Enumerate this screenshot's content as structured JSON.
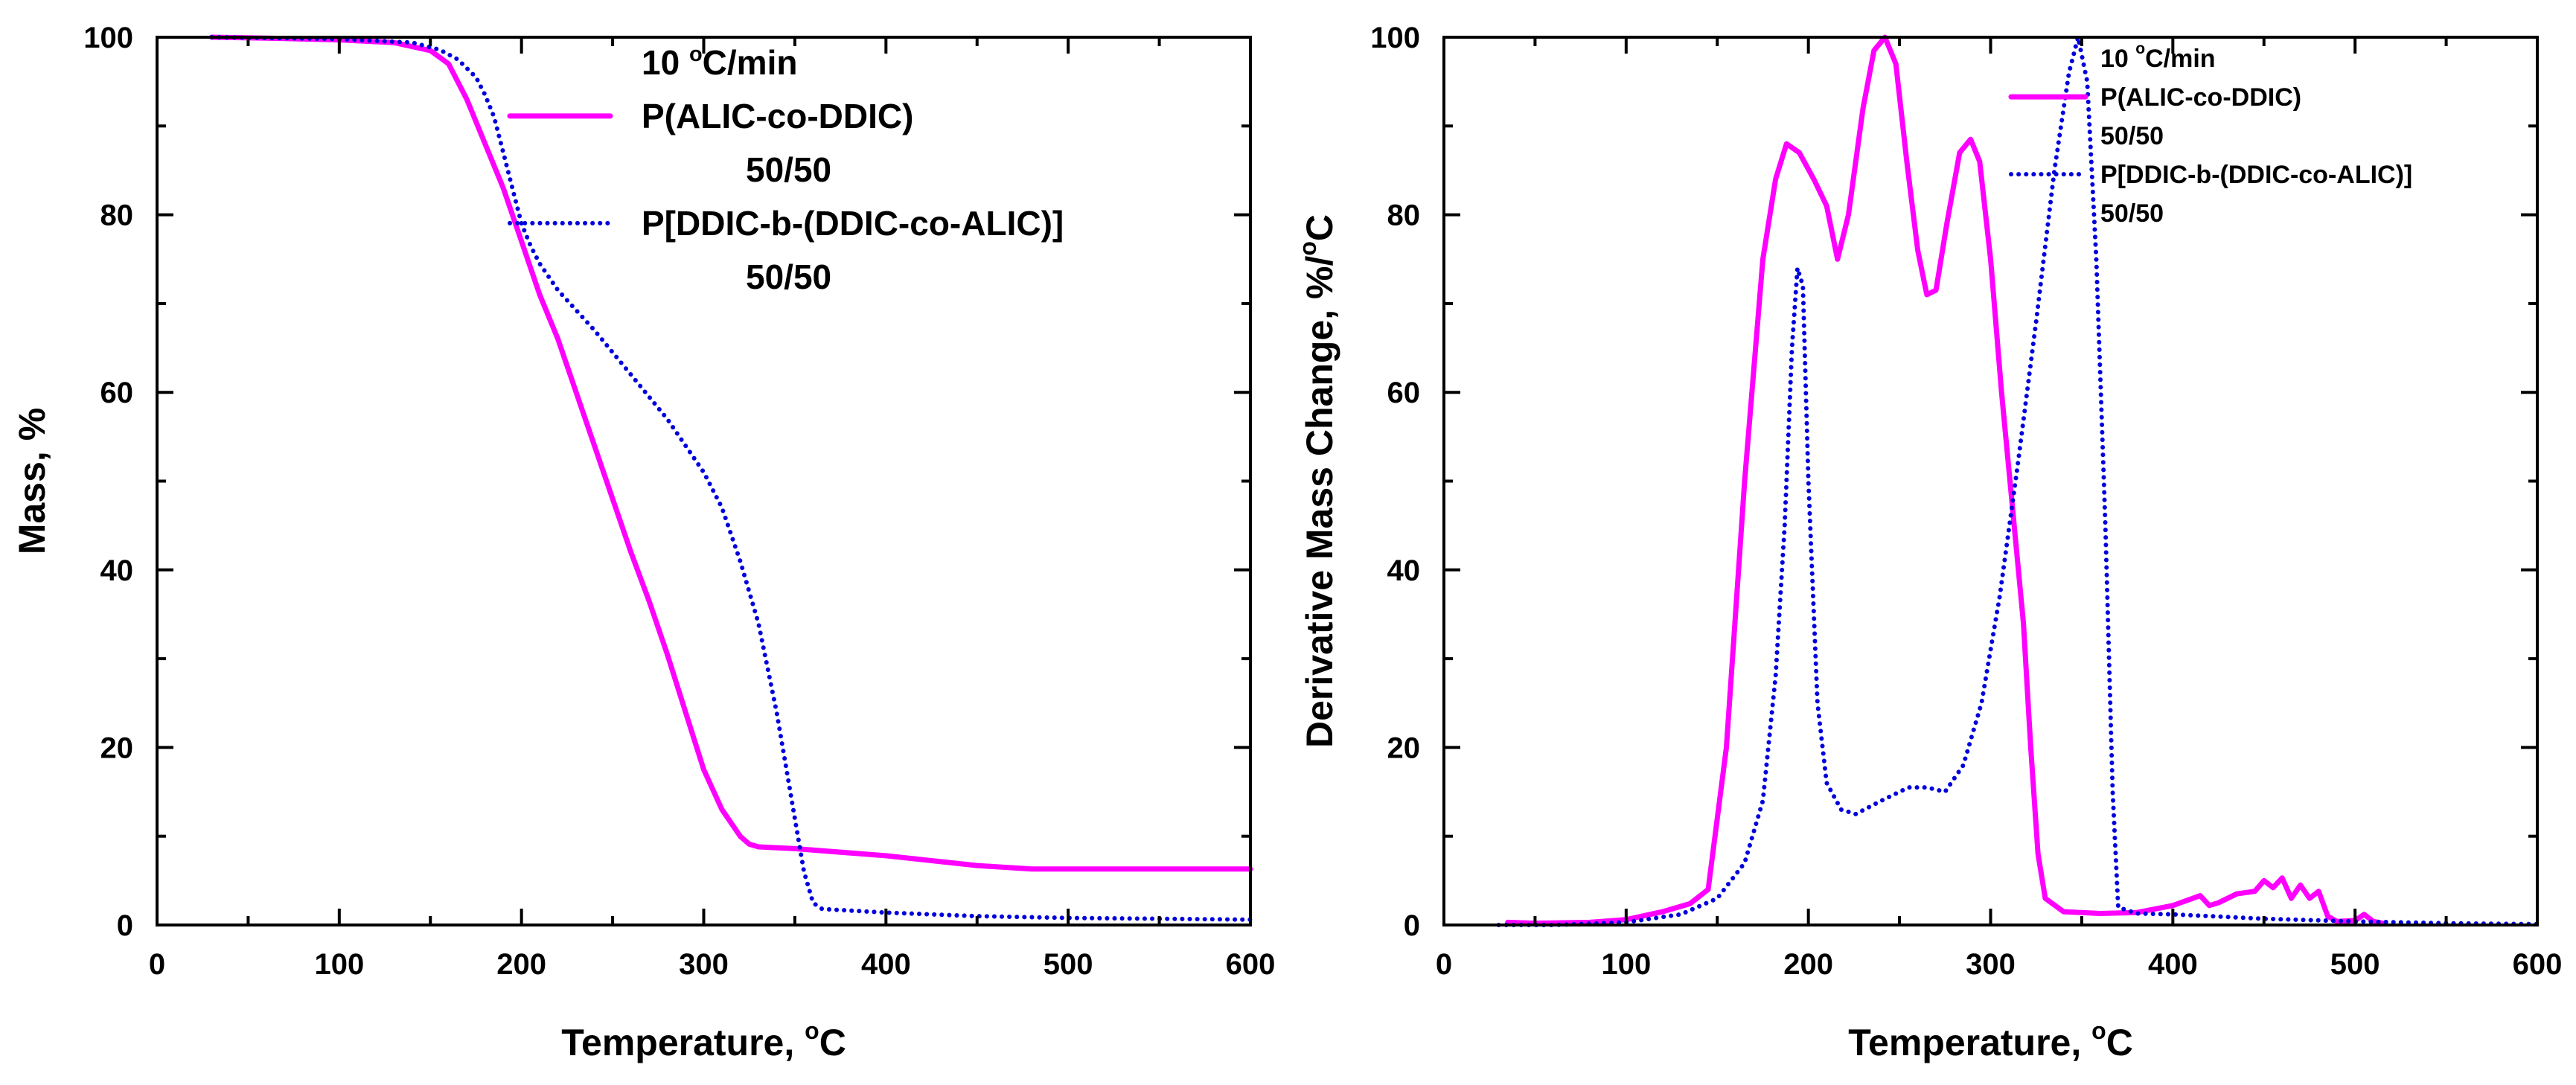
{
  "chart_data": [
    {
      "type": "line",
      "title": "",
      "xlabel": "Temperature, ",
      "xlabel_sup": "o",
      "xlabel_unit": "C",
      "ylabel": "Mass, %",
      "xlim": [
        0,
        600
      ],
      "ylim": [
        0,
        100
      ],
      "xticks": [
        "0",
        "100",
        "200",
        "300",
        "400",
        "500",
        "600"
      ],
      "yticks": [
        "0",
        "20",
        "40",
        "60",
        "80",
        "100"
      ],
      "legend": {
        "position": "top-right",
        "rate": "10 ",
        "rate_sup": "o",
        "rate_unit": "C/min",
        "entries": [
          {
            "name": "P(ALIC-co-DDIC)",
            "sub": "50/50",
            "color": "#ff00ff",
            "style": "solid"
          },
          {
            "name": "P[DDIC-b-(DDIC-co-ALIC)]",
            "sub": "50/50",
            "color": "#0000dd",
            "style": "dotted"
          }
        ]
      },
      "series": [
        {
          "name": "P(ALIC-co-DDIC) 50/50",
          "color": "#ff00ff",
          "style": "solid",
          "x": [
            30,
            60,
            100,
            130,
            150,
            160,
            170,
            180,
            190,
            200,
            210,
            220,
            230,
            240,
            250,
            260,
            270,
            280,
            290,
            300,
            310,
            320,
            325,
            330,
            350,
            400,
            450,
            480,
            500,
            550,
            600
          ],
          "y": [
            100,
            99.9,
            99.7,
            99.4,
            98.5,
            97,
            93,
            88,
            83,
            77,
            71,
            66,
            60,
            54,
            48,
            42,
            36.5,
            30.5,
            24,
            17.5,
            13,
            10,
            9.1,
            8.8,
            8.6,
            7.8,
            6.7,
            6.3,
            6.3,
            6.3,
            6.3
          ]
        },
        {
          "name": "P[DDIC-b-(DDIC-co-ALIC)] 50/50",
          "color": "#0000dd",
          "style": "dotted",
          "x": [
            30,
            100,
            140,
            155,
            165,
            175,
            180,
            185,
            190,
            195,
            200,
            205,
            210,
            220,
            240,
            260,
            280,
            300,
            310,
            320,
            330,
            340,
            345,
            350,
            355,
            360,
            365,
            400,
            450,
            500,
            550,
            600
          ],
          "y": [
            100,
            99.8,
            99.4,
            98.6,
            97.5,
            95.5,
            93.5,
            91,
            87,
            83,
            79,
            76.5,
            74.5,
            71.5,
            67,
            62,
            57,
            51,
            47,
            41,
            34,
            24,
            18,
            12,
            6,
            2.5,
            1.8,
            1.4,
            1.0,
            0.8,
            0.7,
            0.6
          ]
        }
      ]
    },
    {
      "type": "line",
      "title": "",
      "xlabel": "Temperature, ",
      "xlabel_sup": "o",
      "xlabel_unit": "C",
      "ylabel": "Derivative Mass Change, %/",
      "ylabel_sup": "o",
      "ylabel_unit": "C",
      "xlim": [
        0,
        600
      ],
      "ylim": [
        0,
        100
      ],
      "xticks": [
        "0",
        "100",
        "200",
        "300",
        "400",
        "500",
        "600"
      ],
      "yticks": [
        "0",
        "20",
        "40",
        "60",
        "80",
        "100"
      ],
      "legend": {
        "position": "top-right",
        "rate": "10 ",
        "rate_sup": "o",
        "rate_unit": "C/min",
        "entries": [
          {
            "name": "P(ALIC-co-DDIC)",
            "sub": "50/50",
            "color": "#ff00ff",
            "style": "solid"
          },
          {
            "name": "P[DDIC-b-(DDIC-co-ALIC)]",
            "sub": "50/50",
            "color": "#0000dd",
            "style": "dotted"
          }
        ]
      },
      "series": [
        {
          "name": "P(ALIC-co-DDIC) 50/50",
          "color": "#ff00ff",
          "style": "solid",
          "x": [
            35,
            50,
            80,
            100,
            120,
            135,
            145,
            155,
            165,
            175,
            182,
            188,
            195,
            203,
            210,
            216,
            222,
            230,
            236,
            242,
            248,
            254,
            260,
            265,
            270,
            276,
            283,
            289,
            294,
            300,
            306,
            312,
            318,
            322,
            326,
            330,
            340,
            360,
            380,
            400,
            415,
            420,
            425,
            435,
            445,
            450,
            455,
            460,
            465,
            470,
            475,
            480,
            485,
            490,
            500,
            505,
            510,
            515
          ],
          "y": [
            0.3,
            0.2,
            0.3,
            0.6,
            1.5,
            2.4,
            4,
            20,
            50,
            75,
            84,
            88,
            87,
            84,
            81,
            75,
            80,
            92,
            98.5,
            100,
            97,
            86,
            76,
            71,
            71.5,
            79,
            87,
            88.5,
            86,
            75,
            60,
            47,
            34,
            20,
            8,
            3,
            1.5,
            1.3,
            1.4,
            2.2,
            3.3,
            2.2,
            2.5,
            3.5,
            3.8,
            5,
            4.2,
            5.3,
            3,
            4.5,
            3,
            3.8,
            1,
            0.4,
            0.5,
            1.2,
            0.4,
            0.2
          ]
        },
        {
          "name": "P[DDIC-b-(DDIC-co-ALIC)] 50/50",
          "color": "#0000dd",
          "style": "dotted",
          "x": [
            30,
            60,
            100,
            130,
            150,
            165,
            175,
            182,
            187,
            191,
            194,
            197,
            200,
            205,
            210,
            218,
            226,
            240,
            255,
            265,
            275,
            285,
            295,
            305,
            315,
            325,
            335,
            343,
            348,
            353,
            358,
            363,
            367,
            370,
            380,
            400,
            450,
            500,
            550,
            600
          ],
          "y": [
            0,
            0,
            0.3,
            1.2,
            3,
            7,
            14,
            28,
            45,
            65,
            74,
            72,
            50,
            25,
            16,
            13,
            12.5,
            14,
            15.5,
            15.5,
            15,
            18,
            25,
            37,
            52,
            68,
            85,
            96,
            100,
            95,
            75,
            45,
            15,
            2,
            1.3,
            1.2,
            0.7,
            0.4,
            0.2,
            0.1
          ]
        }
      ]
    }
  ]
}
